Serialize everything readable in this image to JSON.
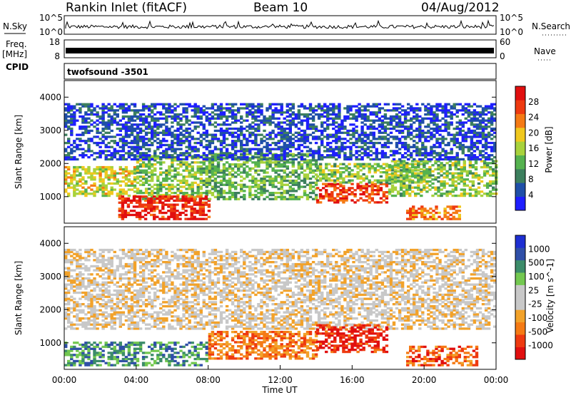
{
  "header": {
    "radar": "Rankin Inlet (fitACF)",
    "beam": "Beam 10",
    "date": "04/Aug/2012"
  },
  "strip_panels": {
    "nsky": {
      "left_label": "N.Sky",
      "left_ticks": [
        "10^5",
        "10^0"
      ],
      "right_label": "N.Search",
      "right_ticks": [
        "10^5",
        "10^0"
      ]
    },
    "freq": {
      "left_label_top": "Freq.",
      "left_label_bottom": "[MHz]",
      "left_ticks": [
        "18",
        "8"
      ],
      "right_label": "Nave",
      "right_ticks": [
        "60",
        "0"
      ]
    },
    "cpid": {
      "label": "CPID",
      "text": "twofsound  -3501"
    }
  },
  "colors": {
    "power": [
      "#1e1eff",
      "#1f4fa8",
      "#3c7f5e",
      "#55b24f",
      "#a8d23c",
      "#f0c81e",
      "#f57a14",
      "#ee3a10",
      "#e10f0f"
    ],
    "velocity": [
      "#e10f0f",
      "#ee3a10",
      "#f57a14",
      "#f2a22a",
      "#c8c8c8",
      "#c8c8c8",
      "#73c850",
      "#3c8c6a",
      "#2f4fa8",
      "#1e2fd2"
    ]
  },
  "chart_data": [
    {
      "type": "heatmap",
      "name": "power",
      "xlabel": "",
      "ylabel": "Slant Range [km]",
      "colorbar_label": "Power [dB]",
      "colorbar_ticks": [
        "4",
        "8",
        "12",
        "16",
        "20",
        "24",
        "28"
      ],
      "x_ticks": [
        "00:00",
        "04:00",
        "08:00",
        "12:00",
        "16:00",
        "20:00",
        "00:00"
      ],
      "y_ticks": [
        "1000",
        "2000",
        "3000",
        "4000"
      ],
      "xlim": [
        0,
        24
      ],
      "ylim": [
        200,
        4500
      ],
      "regions": [
        {
          "x": [
            0,
            4
          ],
          "y": [
            1000,
            1900
          ],
          "level": 0.55
        },
        {
          "x": [
            4,
            8
          ],
          "y": [
            900,
            2200
          ],
          "level": 0.45
        },
        {
          "x": [
            3,
            8
          ],
          "y": [
            300,
            1000
          ],
          "level": 0.9
        },
        {
          "x": [
            8,
            14
          ],
          "y": [
            900,
            2300
          ],
          "level": 0.4
        },
        {
          "x": [
            14,
            18
          ],
          "y": [
            800,
            1400
          ],
          "level": 0.85
        },
        {
          "x": [
            14,
            20
          ],
          "y": [
            1400,
            2000
          ],
          "level": 0.45
        },
        {
          "x": [
            18,
            24
          ],
          "y": [
            1000,
            2100
          ],
          "level": 0.45
        },
        {
          "x": [
            19,
            22
          ],
          "y": [
            300,
            700
          ],
          "level": 0.75
        },
        {
          "x": [
            0,
            24
          ],
          "y": [
            2100,
            3800
          ],
          "level": 0.15
        }
      ]
    },
    {
      "type": "heatmap",
      "name": "velocity",
      "xlabel": "Time UT",
      "ylabel": "Slant Range [km]",
      "colorbar_label": "Velocity [m s^-1]",
      "colorbar_ticks": [
        "-1000",
        "-500",
        "-100",
        "-25",
        "25",
        "100",
        "500",
        "1000"
      ],
      "x_ticks": [
        "00:00",
        "04:00",
        "08:00",
        "12:00",
        "16:00",
        "20:00",
        "00:00"
      ],
      "y_ticks": [
        "1000",
        "2000",
        "3000",
        "4000"
      ],
      "xlim": [
        0,
        24
      ],
      "ylim": [
        200,
        4500
      ],
      "regions": [
        {
          "x": [
            0,
            24
          ],
          "y": [
            1400,
            2300
          ],
          "level": 0.45
        },
        {
          "x": [
            0,
            8
          ],
          "y": [
            300,
            1000
          ],
          "level": 0.75
        },
        {
          "x": [
            8,
            14
          ],
          "y": [
            500,
            1300
          ],
          "level": 0.25
        },
        {
          "x": [
            14,
            18
          ],
          "y": [
            700,
            1500
          ],
          "level": 0.08
        },
        {
          "x": [
            19,
            23
          ],
          "y": [
            300,
            900
          ],
          "level": 0.2
        },
        {
          "x": [
            0,
            24
          ],
          "y": [
            2300,
            3800
          ],
          "level": 0.45
        }
      ]
    }
  ]
}
